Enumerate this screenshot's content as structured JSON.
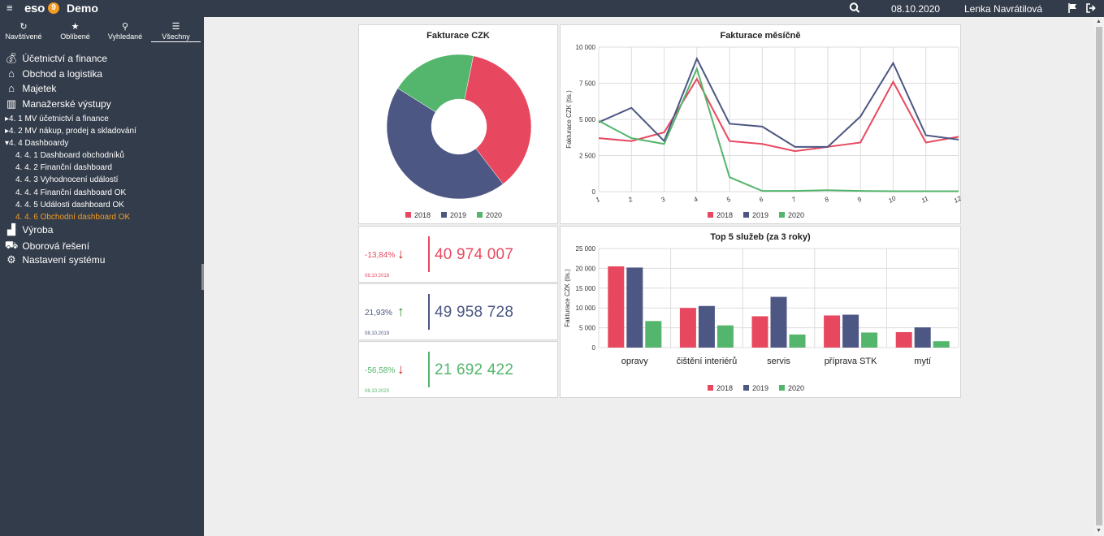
{
  "topbar": {
    "logo": "eso",
    "logo_nine": "9",
    "app_name": "Demo",
    "date": "08.10.2020",
    "user": "Lenka Navrátilová"
  },
  "nav_tabs": [
    {
      "label": "Navštívené",
      "icon": "history-icon"
    },
    {
      "label": "Oblíbené",
      "icon": "star-icon"
    },
    {
      "label": "Vyhledané",
      "icon": "search-icon"
    },
    {
      "label": "Všechny",
      "icon": "list-icon"
    }
  ],
  "modules": [
    {
      "label": "Účetnictví a finance",
      "icon": "moneybag-icon"
    },
    {
      "label": "Obchod a logistika",
      "icon": "shop-icon"
    },
    {
      "label": "Majetek",
      "icon": "building-icon"
    },
    {
      "label": "Manažerské výstupy",
      "icon": "bar-chart-icon"
    },
    {
      "label": "Výroba",
      "icon": "factory-icon"
    },
    {
      "label": "Oborová řešení",
      "icon": "car-icon"
    },
    {
      "label": "Nastavení systému",
      "icon": "gears-icon"
    }
  ],
  "tree": [
    {
      "label": "▸4. 1  MV účetnictví a finance"
    },
    {
      "label": "▸4. 2  MV nákup, prodej a skladování"
    },
    {
      "label": "▾4. 4  Dashboardy"
    },
    {
      "label": "4. 4. 1  Dashboard obchodníků"
    },
    {
      "label": "4. 4. 2  Finanční dashboard"
    },
    {
      "label": "4. 4. 3  Vyhodnocení událostí"
    },
    {
      "label": "4. 4. 4  Finanční dashboard OK"
    },
    {
      "label": "4. 4. 5  Události dashboard OK"
    },
    {
      "label": "4. 4. 6  Obchodní dashboard OK"
    }
  ],
  "colors": {
    "y2018": "#e8485f",
    "y2019": "#4d5783",
    "y2020": "#54b56c",
    "sidebar": "#333c4a",
    "active": "#f39c22"
  },
  "kpis": [
    {
      "pct": "-13,84%",
      "arrow": "down",
      "date": "08.10.2018",
      "value": "40 974 007",
      "color": "#e8485f",
      "arrow_color": "#d42020"
    },
    {
      "pct": "21,93%",
      "arrow": "up",
      "date": "08.10.2019",
      "value": "49 958 728",
      "color": "#4d5783",
      "arrow_color": "#1f8a2a"
    },
    {
      "pct": "-56,58%",
      "arrow": "down",
      "date": "08.10.2020",
      "value": "21 692 422",
      "color": "#54b56c",
      "arrow_color": "#d42020"
    }
  ],
  "chart_data": [
    {
      "type": "pie",
      "title": "Fakturace CZK",
      "donut": true,
      "labels": [
        "2018",
        "2019",
        "2020"
      ],
      "values": [
        40974007,
        49958728,
        21692422
      ],
      "legend": "bottom"
    },
    {
      "type": "line",
      "title": "Fakturace měsíčně",
      "xlabel": "",
      "ylabel": "Fakturace CZK (tis.)",
      "x": [
        1,
        2,
        3,
        4,
        5,
        6,
        7,
        8,
        9,
        10,
        11,
        12
      ],
      "ylim": [
        0,
        10000
      ],
      "yticks": [
        "0",
        "2 500",
        "5 000",
        "7 500",
        "10 000"
      ],
      "grid": true,
      "series": [
        {
          "name": "2018",
          "values": [
            3700,
            3500,
            4100,
            7800,
            3500,
            3300,
            2800,
            3100,
            3400,
            7600,
            3400,
            3800
          ]
        },
        {
          "name": "2019",
          "values": [
            4800,
            5800,
            3500,
            9200,
            4700,
            4500,
            3100,
            3100,
            5200,
            8900,
            3900,
            3600
          ]
        },
        {
          "name": "2020",
          "values": [
            4900,
            3700,
            3300,
            8500,
            1000,
            50,
            50,
            100,
            50,
            30,
            30,
            30
          ]
        }
      ],
      "legend": "bottom"
    },
    {
      "type": "bar",
      "title": "Top 5 služeb (za 3 roky)",
      "xlabel": "",
      "ylabel": "Fakturace CZK (tis.)",
      "categories": [
        "opravy",
        "čištění interiérů",
        "servis",
        "příprava STK",
        "mytí"
      ],
      "ylim": [
        0,
        25000
      ],
      "yticks": [
        "0",
        "5 000",
        "10 000",
        "15 000",
        "20 000",
        "25 000"
      ],
      "grid": true,
      "series": [
        {
          "name": "2018",
          "values": [
            20500,
            10000,
            7900,
            8100,
            3900
          ]
        },
        {
          "name": "2019",
          "values": [
            20200,
            10500,
            12800,
            8300,
            5100
          ]
        },
        {
          "name": "2020",
          "values": [
            6700,
            5600,
            3300,
            3800,
            1600
          ]
        }
      ],
      "legend": "bottom"
    }
  ]
}
